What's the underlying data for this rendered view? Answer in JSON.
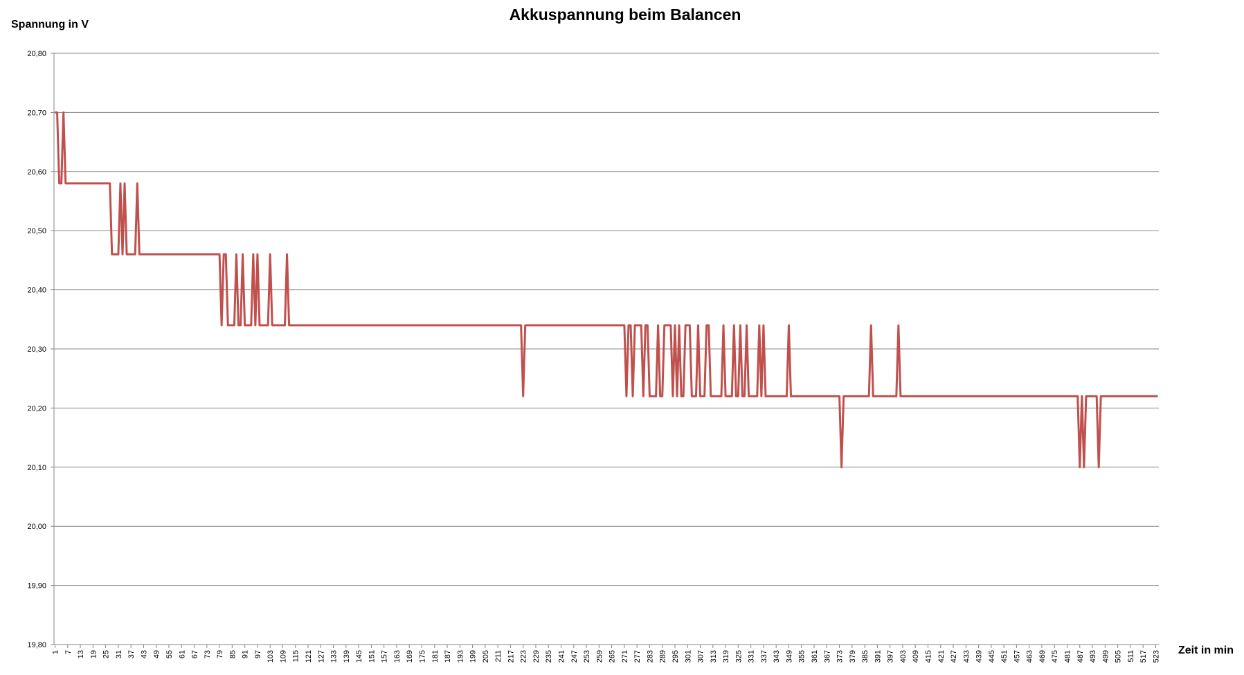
{
  "chart_data": {
    "type": "line",
    "title": "Akkuspannung beim Balancen",
    "y_label": "Spannung in V",
    "x_label": "Zeit in min",
    "color": "#c0504d",
    "grid": true,
    "xlim": [
      0.5,
      524.5
    ],
    "xticks": [
      1,
      7,
      13,
      19,
      25,
      31,
      37,
      43,
      49,
      55,
      61,
      67,
      73,
      79,
      85,
      91,
      97,
      103,
      109,
      115,
      121,
      127,
      133,
      139,
      145,
      151,
      157,
      163,
      169,
      175,
      181,
      187,
      193,
      199,
      205,
      211,
      217,
      223,
      229,
      235,
      241,
      247,
      253,
      259,
      265,
      271,
      277,
      283,
      289,
      295,
      301,
      307,
      313,
      319,
      325,
      331,
      337,
      343,
      349,
      355,
      361,
      367,
      373,
      379,
      385,
      391,
      397,
      403,
      409,
      415,
      421,
      427,
      433,
      439,
      445,
      451,
      457,
      463,
      469,
      475,
      481,
      487,
      493,
      499,
      505,
      511,
      517,
      523
    ],
    "ylim": [
      19.8,
      20.8
    ],
    "yticks": [
      {
        "value": 19.8,
        "label": "19,80"
      },
      {
        "value": 19.9,
        "label": "19,90"
      },
      {
        "value": 20.0,
        "label": "20,00"
      },
      {
        "value": 20.1,
        "label": "20,10"
      },
      {
        "value": 20.2,
        "label": "20,20"
      },
      {
        "value": 20.3,
        "label": "20,30"
      },
      {
        "value": 20.4,
        "label": "20,40"
      },
      {
        "value": 20.5,
        "label": "20,50"
      },
      {
        "value": 20.6,
        "label": "20,60"
      },
      {
        "value": 20.7,
        "label": "20,70"
      },
      {
        "value": 20.8,
        "label": "20,80"
      }
    ],
    "x": [
      1,
      2,
      3,
      4,
      5,
      6,
      27,
      28,
      31,
      32,
      33,
      34,
      35,
      39,
      40,
      41,
      79,
      80,
      81,
      82,
      83,
      86,
      87,
      88,
      89,
      90,
      91,
      94,
      95,
      96,
      97,
      98,
      102,
      103,
      104,
      110,
      111,
      112,
      222,
      223,
      224,
      271,
      272,
      273,
      274,
      275,
      276,
      279,
      280,
      281,
      282,
      283,
      286,
      287,
      288,
      289,
      290,
      293,
      294,
      295,
      296,
      297,
      298,
      299,
      300,
      302,
      303,
      305,
      306,
      307,
      309,
      310,
      311,
      312,
      317,
      318,
      319,
      322,
      323,
      324,
      325,
      326,
      327,
      328,
      329,
      330,
      334,
      335,
      336,
      337,
      338,
      348,
      349,
      350,
      373,
      374,
      375,
      387,
      388,
      389,
      400,
      401,
      402,
      486,
      487,
      488,
      489,
      490,
      495,
      496,
      497,
      524
    ],
    "values": [
      20.7,
      20.7,
      20.58,
      20.58,
      20.7,
      20.58,
      20.58,
      20.46,
      20.46,
      20.58,
      20.46,
      20.58,
      20.46,
      20.46,
      20.58,
      20.46,
      20.46,
      20.34,
      20.46,
      20.46,
      20.34,
      20.34,
      20.46,
      20.34,
      20.34,
      20.46,
      20.34,
      20.34,
      20.46,
      20.34,
      20.46,
      20.34,
      20.34,
      20.46,
      20.34,
      20.34,
      20.46,
      20.34,
      20.34,
      20.22,
      20.34,
      20.34,
      20.22,
      20.34,
      20.34,
      20.22,
      20.34,
      20.34,
      20.22,
      20.34,
      20.34,
      20.22,
      20.22,
      20.34,
      20.22,
      20.22,
      20.34,
      20.34,
      20.22,
      20.34,
      20.22,
      20.34,
      20.22,
      20.22,
      20.34,
      20.34,
      20.22,
      20.22,
      20.34,
      20.22,
      20.22,
      20.34,
      20.34,
      20.22,
      20.22,
      20.34,
      20.22,
      20.22,
      20.34,
      20.22,
      20.22,
      20.34,
      20.22,
      20.22,
      20.34,
      20.22,
      20.22,
      20.34,
      20.22,
      20.34,
      20.22,
      20.22,
      20.34,
      20.22,
      20.22,
      20.1,
      20.22,
      20.22,
      20.34,
      20.22,
      20.22,
      20.34,
      20.22,
      20.22,
      20.1,
      20.22,
      20.1,
      20.22,
      20.22,
      20.1,
      20.22,
      20.22
    ]
  }
}
